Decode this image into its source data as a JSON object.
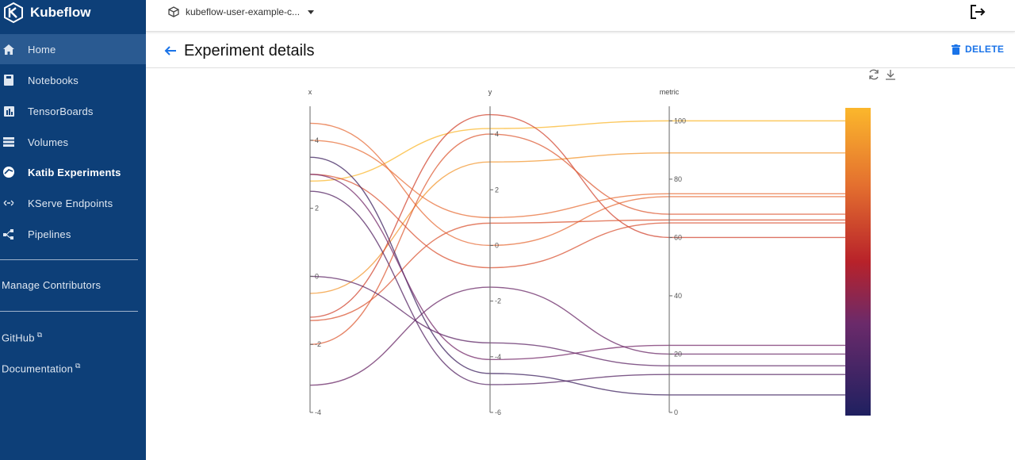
{
  "app": {
    "name": "Kubeflow"
  },
  "sidebar": {
    "items": [
      {
        "label": "Home",
        "icon": "home-icon"
      },
      {
        "label": "Notebooks",
        "icon": "notebook-icon"
      },
      {
        "label": "TensorBoards",
        "icon": "tensorboard-icon"
      },
      {
        "label": "Volumes",
        "icon": "volumes-icon"
      },
      {
        "label": "Katib Experiments",
        "icon": "katib-icon"
      },
      {
        "label": "KServe Endpoints",
        "icon": "kserve-icon"
      },
      {
        "label": "Pipelines",
        "icon": "pipelines-icon"
      }
    ],
    "manage_contributors": "Manage Contributors",
    "github": "GitHub",
    "documentation": "Documentation"
  },
  "topbar": {
    "namespace": "kubeflow-user-example-c...",
    "logout_icon": "logout-icon"
  },
  "header": {
    "title": "Experiment details",
    "delete_label": "DELETE"
  },
  "colors": {
    "sidebar_bg": "#0d3f78",
    "active_item": "#2a5a91",
    "accent": "#1a73e8"
  },
  "chart_data": {
    "type": "parallel-coordinates",
    "axes": [
      {
        "name": "x",
        "range": [
          -4,
          5
        ],
        "ticks": [
          -4,
          -2,
          0,
          2,
          4
        ]
      },
      {
        "name": "y",
        "range": [
          -6,
          5
        ],
        "ticks": [
          -6,
          -4,
          -2,
          0,
          2,
          4
        ]
      },
      {
        "name": "metric",
        "range": [
          0,
          105
        ],
        "ticks": [
          0,
          20,
          40,
          60,
          80,
          100
        ]
      }
    ],
    "color_scale": {
      "colors": [
        "#2a1e5c",
        "#7a2a6a",
        "#c42a2a",
        "#e8703a",
        "#fbb72c"
      ],
      "range": [
        0,
        100
      ]
    },
    "series": [
      {
        "x": 2.8,
        "y": 4.2,
        "metric": 100
      },
      {
        "x": -0.5,
        "y": 3.0,
        "metric": 89
      },
      {
        "x": 4.5,
        "y": 0,
        "metric": 74
      },
      {
        "x": -1.2,
        "y": 4.7,
        "metric": 60
      },
      {
        "x": -2.0,
        "y": 4.0,
        "metric": 68
      },
      {
        "x": 3.0,
        "y": -0.8,
        "metric": 65
      },
      {
        "x": -1.3,
        "y": 0.8,
        "metric": 66
      },
      {
        "x": 4.0,
        "y": 1.0,
        "metric": 75
      },
      {
        "x": 3.5,
        "y": -4.6,
        "metric": 6
      },
      {
        "x": 2.5,
        "y": -5.0,
        "metric": 13
      },
      {
        "x": -3.2,
        "y": -1.5,
        "metric": 20
      },
      {
        "x": 0.0,
        "y": -3.5,
        "metric": 16
      },
      {
        "x": 3.0,
        "y": -4.1,
        "metric": 23
      }
    ]
  }
}
